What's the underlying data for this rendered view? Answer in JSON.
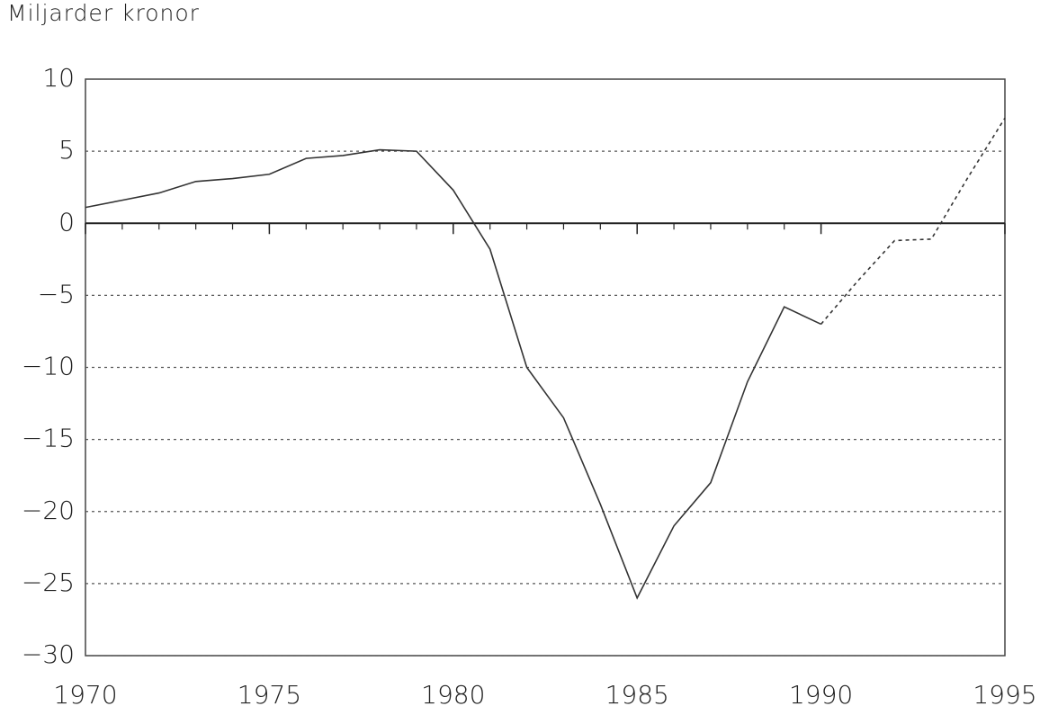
{
  "chart_data": {
    "type": "line",
    "title": "Miljarder kronor",
    "series": [
      {
        "color": "#333333",
        "dash": false,
        "x": [
          1970,
          1971,
          1972,
          1973,
          1974,
          1975,
          1976,
          1977,
          1978,
          1979,
          1980,
          1981,
          1982,
          1983,
          1984,
          1985,
          1986,
          1987,
          1988,
          1989,
          1990
        ],
        "values": [
          1.1,
          1.6,
          2.1,
          2.9,
          3.1,
          3.4,
          4.5,
          4.7,
          5.1,
          5.0,
          2.3,
          -1.8,
          -10,
          -13.5,
          -19.5,
          -26,
          -21,
          -18,
          -11,
          -5.8,
          -7
        ]
      },
      {
        "color": "#333333",
        "dash": true,
        "x": [
          1990,
          1991,
          1992,
          1993,
          1994,
          1995
        ],
        "values": [
          -7,
          -4,
          -1.2,
          -1.1,
          3.2,
          7.3
        ]
      }
    ],
    "xlim": [
      1970,
      1995
    ],
    "xticks": [
      1970,
      1975,
      1980,
      1985,
      1990,
      1995
    ],
    "ylim": [
      -30,
      10
    ],
    "yticks": [
      10,
      5,
      0,
      {
        "value": -5,
        "label": "−5"
      },
      {
        "value": -10,
        "label": "−10"
      },
      {
        "value": -15,
        "label": "−15"
      },
      {
        "value": -20,
        "label": "−20"
      },
      {
        "value": -25,
        "label": "−25"
      },
      {
        "value": -30,
        "label": "−30"
      }
    ],
    "grid": true
  }
}
